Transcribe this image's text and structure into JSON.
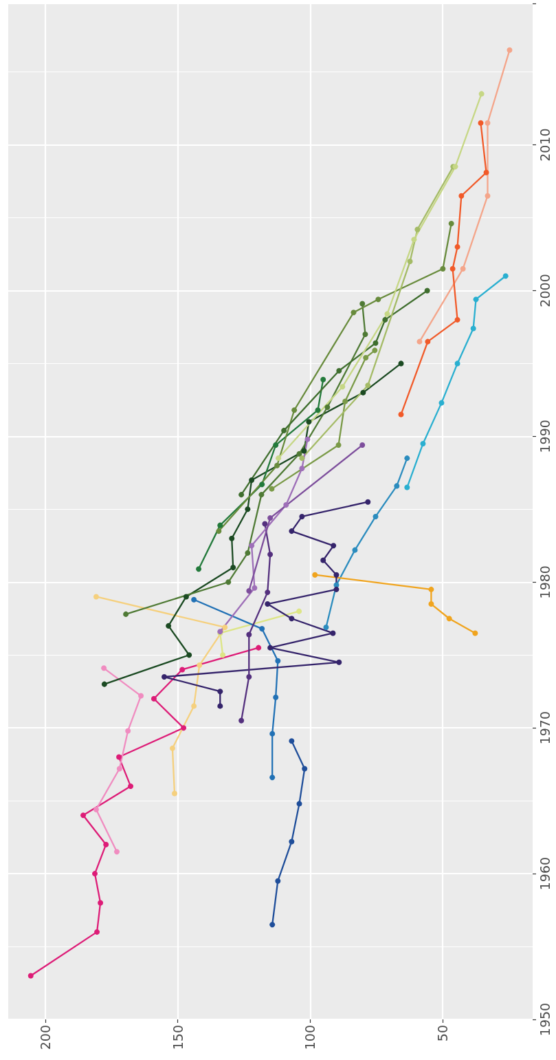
{
  "chart_data": {
    "type": "line",
    "orientation": "horizontal",
    "ylim": [
      1950,
      2019.7
    ],
    "yticks": [
      1950,
      1960,
      1970,
      1980,
      1990,
      2000,
      2010
    ],
    "xlim": [
      214,
      16
    ],
    "xticks": [
      200,
      150,
      100,
      50
    ],
    "grid": true,
    "marker": "circle",
    "line_style": "solid",
    "series": [
      {
        "color": "#dd1c77",
        "x": [
          1953.0,
          1956.0,
          1958.0,
          1960.0,
          1962.0,
          1964.0,
          1966.0,
          1968.0,
          1970.0,
          1972.0,
          1974.0,
          1975.5
        ],
        "values": [
          205.5,
          180.5,
          179.2,
          181.3,
          177.1,
          185.7,
          167.8,
          172.2,
          147.8,
          159.0,
          148.3,
          119.5
        ]
      },
      {
        "color": "#f08cc0",
        "x": [
          1961.5,
          1964.4,
          1967.2,
          1969.8,
          1972.2,
          1974.1
        ],
        "values": [
          173.0,
          180.8,
          172.0,
          168.8,
          163.9,
          177.9
        ]
      },
      {
        "color": "#f5d07e",
        "x": [
          1965.5,
          1968.6,
          1971.5,
          1974.3,
          1976.9,
          1979.0
        ],
        "values": [
          151.2,
          152.0,
          143.9,
          141.8,
          132.2,
          180.8
        ]
      },
      {
        "color": "#dde585",
        "x": [
          1975.0,
          1976.5,
          1978.0
        ],
        "values": [
          133.0,
          134.0,
          104.2
        ]
      },
      {
        "color": "#1b4a22",
        "x": [
          1973.0,
          1975.0,
          1977.0,
          1979.0,
          1981.0,
          1983.0,
          1985.0,
          1987.0,
          1989.0,
          1991.0,
          1993.0,
          1995.0
        ],
        "values": [
          177.7,
          145.7,
          153.5,
          146.8,
          129.1,
          129.6,
          123.6,
          122.1,
          102.3,
          100.5,
          80.0,
          65.7
        ]
      },
      {
        "color": "#237a3b",
        "x": [
          1980.9,
          1983.9,
          1986.7,
          1989.4,
          1991.8,
          1993.9
        ],
        "values": [
          142.1,
          134.0,
          118.2,
          113.0,
          97.1,
          95.1
        ]
      },
      {
        "color": "#4f7a35",
        "x": [
          1977.8,
          1980.0,
          1982.0,
          1986.0,
          1988.8,
          1992.0,
          1997.0,
          1999.1
        ],
        "values": [
          169.6,
          130.9,
          123.6,
          118.4,
          104.1,
          93.5,
          79.2,
          80.3
        ]
      },
      {
        "color": "#688b3c",
        "x": [
          1983.5,
          1988.0,
          1991.8,
          1998.5,
          1999.4,
          2001.5,
          2004.6
        ],
        "values": [
          134.5,
          112.5,
          106.0,
          83.6,
          74.3,
          49.9,
          46.7
        ]
      },
      {
        "color": "#3f6e2e",
        "x": [
          1986.0,
          1990.4,
          1994.5,
          1996.4,
          1998.0,
          2000.0
        ],
        "values": [
          126.0,
          109.9,
          89.1,
          75.3,
          71.7,
          55.8
        ]
      },
      {
        "color": "#7a9a47",
        "x": [
          1986.4,
          1989.4,
          1992.4,
          1995.4,
          1995.9
        ],
        "values": [
          114.5,
          89.3,
          86.8,
          79.0,
          75.6
        ]
      },
      {
        "color": "#a4bb66",
        "x": [
          1988.5,
          1993.5,
          2002.0,
          2004.2,
          2008.5
        ],
        "values": [
          103.1,
          78.2,
          62.3,
          59.5,
          46.0
        ]
      },
      {
        "color": "#c6d785",
        "x": [
          1988.5,
          1993.4,
          1998.4,
          2003.5,
          2008.5,
          2013.5
        ],
        "values": [
          112.0,
          87.8,
          70.9,
          60.8,
          45.2,
          35.3
        ]
      },
      {
        "color": "#f4a58a",
        "x": [
          1996.5,
          2001.5,
          2006.5,
          2011.5,
          2016.5
        ],
        "values": [
          58.7,
          42.3,
          33.0,
          33.0,
          24.7
        ]
      },
      {
        "color": "#f15a29",
        "x": [
          1991.5,
          1996.5,
          1998.0,
          2001.5,
          2003.0,
          2006.5,
          2008.1,
          2011.5
        ],
        "values": [
          65.7,
          55.6,
          44.4,
          46.2,
          44.4,
          42.9,
          33.5,
          35.6
        ]
      },
      {
        "color": "#29afd0",
        "x": [
          1986.5,
          1989.5,
          1992.3,
          1995.0,
          1997.4,
          1999.4,
          2001.0
        ],
        "values": [
          63.4,
          57.4,
          50.4,
          44.4,
          38.4,
          37.4,
          26.2
        ]
      },
      {
        "color": "#2b8cbe",
        "x": [
          1976.9,
          1979.8,
          1982.2,
          1984.5,
          1986.6,
          1988.5
        ],
        "values": [
          94.0,
          90.1,
          83.1,
          75.3,
          67.3,
          63.4
        ]
      },
      {
        "color": "#f0a41e",
        "x": [
          1980.5,
          1979.5,
          1978.5,
          1977.5,
          1976.5
        ],
        "values": [
          98.2,
          54.3,
          54.3,
          47.5,
          37.7
        ]
      },
      {
        "color": "#2171b5",
        "x": [
          1966.6,
          1969.6,
          1972.1,
          1974.6,
          1976.8,
          1978.8
        ],
        "values": [
          114.3,
          114.3,
          113.0,
          112.2,
          118.2,
          143.9
        ]
      },
      {
        "color": "#1f4e9a",
        "x": [
          1956.5,
          1959.5,
          1962.2,
          1964.8,
          1967.2,
          1969.1
        ],
        "values": [
          114.3,
          112.2,
          107.0,
          104.1,
          102.1,
          107.0
        ]
      },
      {
        "color": "#35246b",
        "x": [
          1971.5,
          1972.5,
          1973.5,
          1974.5,
          1975.5,
          1976.5,
          1977.5,
          1978.5,
          1979.5,
          1980.5,
          1981.5,
          1982.5,
          1983.5,
          1984.5,
          1985.5
        ],
        "values": [
          134.0,
          134.0,
          155.1,
          89.1,
          115.1,
          91.4,
          107.0,
          116.1,
          90.1,
          90.1,
          95.1,
          91.2,
          107.0,
          103.1,
          78.2
        ]
      },
      {
        "color": "#54307e",
        "x": [
          1970.5,
          1973.5,
          1976.4,
          1979.3,
          1981.9,
          1984.0
        ],
        "values": [
          126.0,
          123.1,
          123.1,
          116.1,
          115.1,
          117.1
        ]
      },
      {
        "color": "#9e6fb8",
        "x": [
          1976.6,
          1979.6,
          1982.5,
          1985.3,
          1987.8,
          1989.8
        ],
        "values": [
          134.0,
          121.0,
          122.1,
          109.1,
          103.1,
          101.0
        ]
      },
      {
        "color": "#7d4e9c",
        "x": [
          1979.4,
          1984.4,
          1989.4
        ],
        "values": [
          123.1,
          115.1,
          80.3
        ]
      }
    ]
  }
}
